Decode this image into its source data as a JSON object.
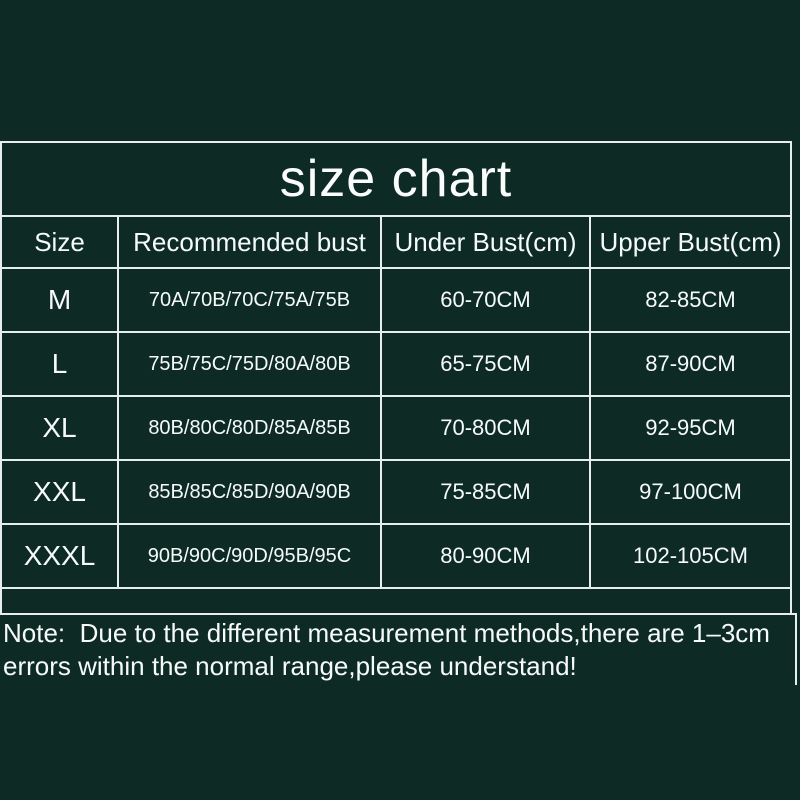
{
  "colors": {
    "background": "#0d2b24",
    "border": "#e8eeee",
    "text": "#f6faf9"
  },
  "title": "size chart",
  "table": {
    "headers": [
      "Size",
      "Recommended bust",
      "Under Bust(cm)",
      "Upper Bust(cm)"
    ],
    "rows": [
      {
        "size": "M",
        "recommended": "70A/70B/70C/75A/75B",
        "under_bust": "60-70CM",
        "upper_bust": "82-85CM"
      },
      {
        "size": "L",
        "recommended": "75B/75C/75D/80A/80B",
        "under_bust": "65-75CM",
        "upper_bust": "87-90CM"
      },
      {
        "size": "XL",
        "recommended": "80B/80C/80D/85A/85B",
        "under_bust": "70-80CM",
        "upper_bust": "92-95CM"
      },
      {
        "size": "XXL",
        "recommended": "85B/85C/85D/90A/90B",
        "under_bust": "75-85CM",
        "upper_bust": "97-100CM"
      },
      {
        "size": "XXXL",
        "recommended": "90B/90C/90D/95B/95C",
        "under_bust": "80-90CM",
        "upper_bust": "102-105CM"
      }
    ]
  },
  "note": {
    "line1": "Note:  Due to the different measurement methods,there are 1–3cm",
    "line2": "errors within the normal range,please understand!"
  },
  "chart_data": {
    "type": "table",
    "title": "size chart",
    "columns": [
      "Size",
      "Recommended bust",
      "Under Bust(cm)",
      "Upper Bust(cm)"
    ],
    "rows": [
      [
        "M",
        "70A/70B/70C/75A/75B",
        "60-70CM",
        "82-85CM"
      ],
      [
        "L",
        "75B/75C/75D/80A/80B",
        "65-75CM",
        "87-90CM"
      ],
      [
        "XL",
        "80B/80C/80D/85A/85B",
        "70-80CM",
        "92-95CM"
      ],
      [
        "XXL",
        "85B/85C/85D/90A/90B",
        "75-85CM",
        "97-100CM"
      ],
      [
        "XXXL",
        "90B/90C/90D/95B/95C",
        "80-90CM",
        "102-105CM"
      ]
    ],
    "note": "Note:  Due to the different measurement methods,there are 1–3cm errors within the normal range,please understand!"
  }
}
